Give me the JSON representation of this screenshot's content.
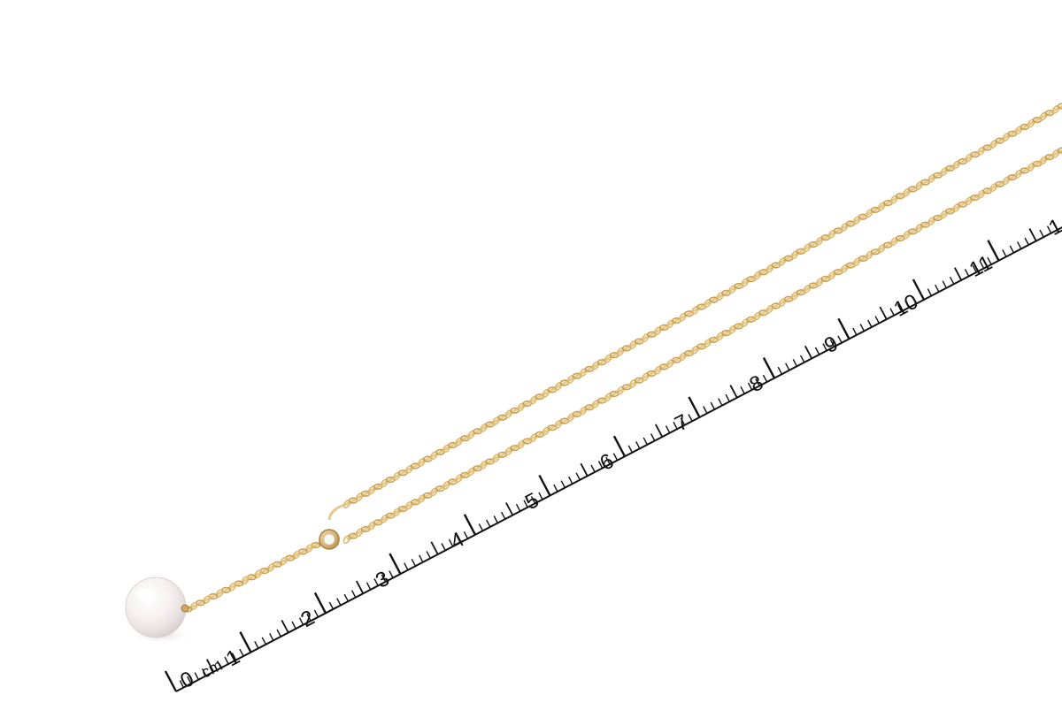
{
  "photo": {
    "subject": "pearl-necklace-with-ruler",
    "background_color": "#ffffff",
    "chain_color": "#d9b36a",
    "pearl_color": "#f3eeee"
  },
  "ruler": {
    "unit_label": "cm",
    "start_label": "0",
    "labels": [
      "1",
      "2",
      "3",
      "4",
      "5",
      "6",
      "7",
      "8",
      "9",
      "10",
      "11",
      "1"
    ]
  }
}
